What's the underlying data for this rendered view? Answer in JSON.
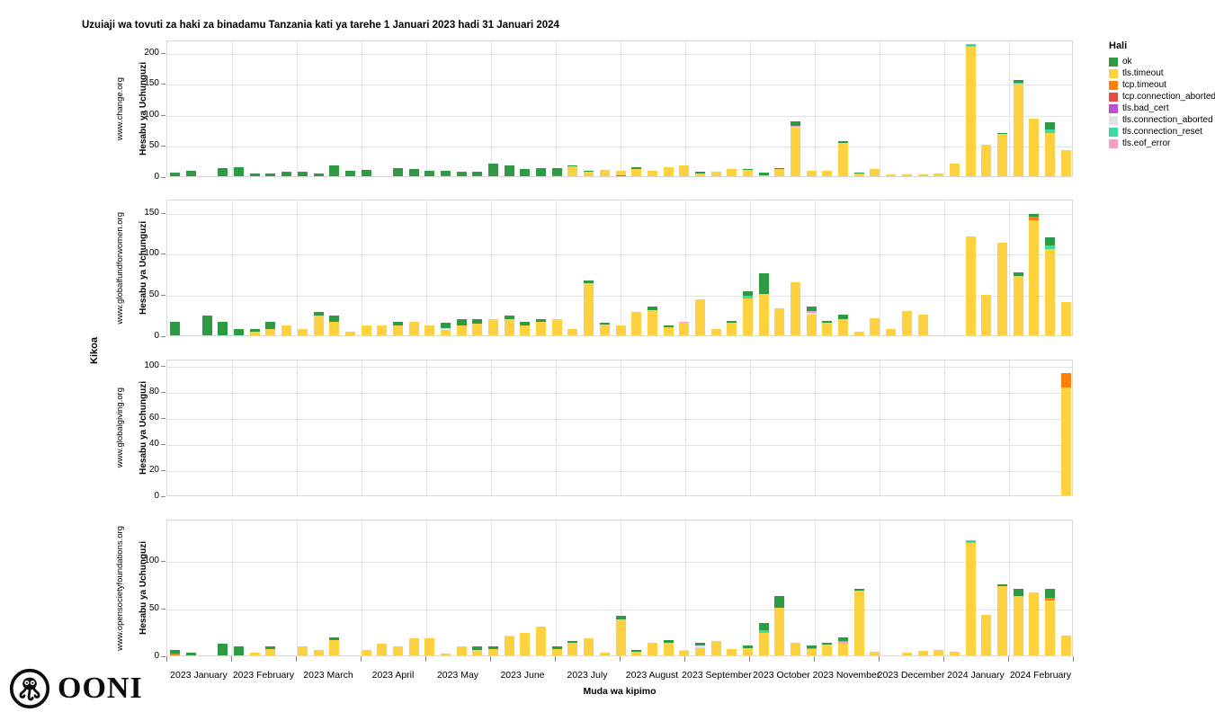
{
  "title": "Uzuiaji wa tovuti za haki za binadamu Tanzania kati ya tarehe 1 Januari 2023 hadi 31 Januari 2024",
  "logo_text": "OONI",
  "axes": {
    "x_title": "Muda wa kipimo",
    "y_title": "Hesabu ya Uchunguzi",
    "row_title": "Kikoa",
    "months": [
      "2023 January",
      "2023 February",
      "2023 March",
      "2023 April",
      "2023 May",
      "2023 June",
      "2023 July",
      "2023 August",
      "2023 September",
      "2023 October",
      "2023 November",
      "2023 December",
      "2024 January",
      "2024 February"
    ]
  },
  "legend": {
    "title": "Hali",
    "items": [
      {
        "label": "ok",
        "color": "#2e9b44"
      },
      {
        "label": "tls.timeout",
        "color": "#fdd13f"
      },
      {
        "label": "tcp.timeout",
        "color": "#fd800d"
      },
      {
        "label": "tcp.connection_aborted",
        "color": "#e84a4a"
      },
      {
        "label": "tls.bad_cert",
        "color": "#bb4fcc"
      },
      {
        "label": "tls.connection_aborted",
        "color": "#e2e2e6"
      },
      {
        "label": "tls.connection_reset",
        "color": "#3fd9a4"
      },
      {
        "label": "tls.eof_error",
        "color": "#f9a0c2"
      }
    ]
  },
  "chart_data": {
    "type": "bar",
    "stacked": true,
    "facet": "one row per domain, weekly stacked counts of measurement outcomes",
    "x_unit": "week",
    "weeks_total": 57,
    "x_range": [
      "2023 January",
      "2024 February"
    ],
    "statuses": [
      "ok",
      "tls.timeout",
      "tcp.timeout",
      "tcp.connection_aborted",
      "tls.bad_cert",
      "tls.connection_aborted",
      "tls.connection_reset",
      "tls.eof_error"
    ],
    "stack_order_bottom_to_top": [
      "tls.bad_cert",
      "tls.timeout",
      "tls.connection_aborted",
      "tls.eof_error",
      "tls.connection_reset",
      "tcp.connection_aborted",
      "tcp.timeout",
      "ok"
    ],
    "colors": {
      "ok": "#2e9b44",
      "tls.timeout": "#fdd13f",
      "tcp.timeout": "#fd800d",
      "tcp.connection_aborted": "#e84a4a",
      "tls.bad_cert": "#bb4fcc",
      "tls.connection_aborted": "#e2e2e6",
      "tls.connection_reset": "#3fd9a4",
      "tls.eof_error": "#f9a0c2"
    },
    "grid": true,
    "legend_position": "top-right",
    "panels": [
      {
        "domain": "www.change.org",
        "ylabel": "Hesabu ya Uchunguzi",
        "yticks": [
          0,
          50,
          100,
          150,
          200
        ],
        "ymax_render": 220,
        "bars": [
          {
            "ok": 6
          },
          {
            "ok": 8
          },
          {},
          {
            "ok": 13
          },
          {
            "ok": 15
          },
          {
            "ok": 4
          },
          {
            "ok": 5
          },
          {
            "ok": 7
          },
          {
            "ok": 7
          },
          {
            "ok": 4
          },
          {
            "ok": 17
          },
          {
            "ok": 8
          },
          {
            "ok": 10
          },
          {},
          {
            "ok": 13
          },
          {
            "ok": 12
          },
          {
            "ok": 9
          },
          {
            "tls.bad_cert": 2,
            "ok": 6
          },
          {
            "ok": 7
          },
          {
            "tls.bad_cert": 2,
            "ok": 5
          },
          {
            "ok": 20
          },
          {
            "ok": 17
          },
          {
            "ok": 12
          },
          {
            "ok": 13
          },
          {
            "tls.bad_cert": 2,
            "ok": 11
          },
          {
            "tls.timeout": 16,
            "ok": 2
          },
          {
            "tls.timeout": 7,
            "ok": 1
          },
          {
            "tls.timeout": 10
          },
          {
            "tls.bad_cert": 1,
            "tls.timeout": 7
          },
          {
            "tls.timeout": 12,
            "ok": 2
          },
          {
            "tls.timeout": 8
          },
          {
            "tls.timeout": 14
          },
          {
            "tls.timeout": 17
          },
          {
            "tls.timeout": 5,
            "ok": 2
          },
          {
            "tls.timeout": 7
          },
          {
            "tls.timeout": 12
          },
          {
            "tls.timeout": 10,
            "ok": 1
          },
          {
            "tls.timeout": 1,
            "ok": 5
          },
          {
            "tls.timeout": 11,
            "ok": 2
          },
          {
            "tls.timeout": 79,
            "tls.connection_aborted": 1,
            "tls.eof_error": 1,
            "ok": 8
          },
          {
            "tls.timeout": 8
          },
          {
            "tls.timeout": 9
          },
          {
            "tls.timeout": 53,
            "ok": 4
          },
          {
            "tls.timeout": 4,
            "ok": 1
          },
          {
            "tls.timeout": 12
          },
          {
            "tls.timeout": 3
          },
          {
            "tls.timeout": 3
          },
          {
            "tls.timeout": 3
          },
          {
            "tls.timeout": 5
          },
          {
            "tls.timeout": 21
          },
          {
            "tls.timeout": 208,
            "tls.connection_reset": 5
          },
          {
            "tls.timeout": 50
          },
          {
            "tls.timeout": 68,
            "ok": 2
          },
          {
            "tls.timeout": 150,
            "tls.connection_reset": 1,
            "ok": 4
          },
          {
            "tls.timeout": 93
          },
          {
            "tls.timeout": 70,
            "tls.connection_reset": 5,
            "ok": 12
          },
          {
            "tls.timeout": 42
          }
        ]
      },
      {
        "domain": "www.globalfundforwomen.org",
        "ylabel": "Hesabu ya Uchunguzi",
        "yticks": [
          0,
          50,
          100,
          150
        ],
        "ymax_render": 166,
        "bars": [
          {
            "ok": 16
          },
          {},
          {
            "ok": 24
          },
          {
            "ok": 16
          },
          {
            "ok": 8
          },
          {
            "tls.timeout": 4,
            "ok": 4
          },
          {
            "tls.timeout": 8,
            "ok": 8
          },
          {
            "tls.timeout": 12
          },
          {
            "tls.timeout": 8
          },
          {
            "tls.timeout": 24,
            "ok": 4
          },
          {
            "tls.timeout": 16,
            "ok": 8
          },
          {
            "tls.timeout": 4
          },
          {
            "tls.timeout": 12
          },
          {
            "tls.timeout": 12
          },
          {
            "tls.timeout": 12,
            "ok": 4
          },
          {
            "tls.timeout": 16
          },
          {
            "tls.timeout": 12
          },
          {
            "tls.timeout": 7,
            "tls.connection_aborted": 2,
            "ok": 6
          },
          {
            "tls.timeout": 12,
            "ok": 8
          },
          {
            "tls.timeout": 14,
            "ok": 6
          },
          {
            "tls.timeout": 20
          },
          {
            "tls.timeout": 20,
            "ok": 4
          },
          {
            "tls.timeout": 12,
            "ok": 4
          },
          {
            "tls.timeout": 16,
            "ok": 4
          },
          {
            "tls.timeout": 20
          },
          {
            "tls.timeout": 8
          },
          {
            "tls.timeout": 63,
            "ok": 4
          },
          {
            "tls.timeout": 13,
            "ok": 2
          },
          {
            "tls.timeout": 12
          },
          {
            "tls.timeout": 28
          },
          {
            "tls.timeout": 31,
            "ok": 4
          },
          {
            "tls.timeout": 10,
            "ok": 2
          },
          {
            "tls.timeout": 15,
            "tls.eof_error": 1
          },
          {
            "tls.timeout": 44
          },
          {
            "tls.timeout": 8
          },
          {
            "tls.timeout": 15,
            "ok": 2
          },
          {
            "tls.timeout": 45,
            "tls.connection_reset": 3,
            "ok": 5
          },
          {
            "tls.timeout": 50,
            "ok": 25
          },
          {
            "tls.timeout": 33
          },
          {
            "tls.timeout": 64
          },
          {
            "tls.timeout": 25,
            "tls.connection_aborted": 2,
            "tls.eof_error": 2,
            "ok": 6
          },
          {
            "tls.timeout": 15,
            "ok": 2
          },
          {
            "tls.timeout": 20,
            "ok": 5
          },
          {
            "tls.timeout": 4
          },
          {
            "tls.timeout": 21
          },
          {
            "tls.timeout": 8
          },
          {
            "tls.timeout": 29
          },
          {
            "tls.timeout": 25
          },
          {},
          {},
          {
            "tls.timeout": 120
          },
          {
            "tls.timeout": 49
          },
          {
            "tls.timeout": 112
          },
          {
            "tls.timeout": 72,
            "ok": 5
          },
          {
            "tls.timeout": 140,
            "tcp.timeout": 4,
            "ok": 4
          },
          {
            "tls.timeout": 105,
            "tls.connection_reset": 4,
            "ok": 10
          },
          {
            "tls.timeout": 40
          }
        ]
      },
      {
        "domain": "www.globalgiving.org",
        "ylabel": "Hesabu ya Uchunguzi",
        "yticks": [
          0,
          20,
          40,
          60,
          80,
          100
        ],
        "ymax_render": 105,
        "bars": [
          {},
          {},
          {},
          {},
          {},
          {},
          {},
          {},
          {},
          {},
          {},
          {},
          {},
          {},
          {},
          {},
          {},
          {},
          {},
          {},
          {},
          {},
          {},
          {},
          {},
          {},
          {},
          {},
          {},
          {},
          {},
          {},
          {},
          {},
          {},
          {},
          {},
          {},
          {},
          {},
          {},
          {},
          {},
          {},
          {},
          {},
          {},
          {},
          {},
          {},
          {},
          {},
          {},
          {},
          {},
          {},
          {
            "tls.timeout": 83,
            "tcp.timeout": 11
          }
        ]
      },
      {
        "domain": "www.opensocietyfoundations.org",
        "ylabel": "Hesabu ya Uchunguzi",
        "yticks": [
          0,
          50,
          100
        ],
        "ymax_render": 143,
        "bars": [
          {
            "tcp.timeout": 2,
            "ok": 4
          },
          {
            "ok": 3
          },
          {},
          {
            "ok": 12
          },
          {
            "ok": 9
          },
          {
            "tls.timeout": 3
          },
          {
            "tls.timeout": 7,
            "ok": 2
          },
          {},
          {
            "tls.timeout": 9
          },
          {
            "tls.timeout": 6
          },
          {
            "tls.timeout": 16,
            "ok": 3
          },
          {},
          {
            "tls.timeout": 6
          },
          {
            "tls.timeout": 12
          },
          {
            "tls.timeout": 9
          },
          {
            "tls.timeout": 18
          },
          {
            "tls.timeout": 18
          },
          {
            "tls.timeout": 2
          },
          {
            "tls.timeout": 9
          },
          {
            "tls.timeout": 6,
            "ok": 3
          },
          {
            "tls.timeout": 7,
            "ok": 2
          },
          {
            "tls.timeout": 20,
            "tls.connection_aborted": 1
          },
          {
            "tls.timeout": 24
          },
          {
            "tls.timeout": 30
          },
          {
            "tls.timeout": 7,
            "ok": 2
          },
          {
            "tls.timeout": 13,
            "ok": 2
          },
          {
            "tls.timeout": 18
          },
          {
            "tls.timeout": 3
          },
          {
            "tls.timeout": 38,
            "ok": 3
          },
          {
            "tls.timeout": 4,
            "ok": 2
          },
          {
            "tls.timeout": 13
          },
          {
            "tls.timeout": 13,
            "ok": 3
          },
          {
            "tls.timeout": 5,
            "tls.connection_aborted": 1
          },
          {
            "tls.timeout": 8,
            "tls.connection_aborted": 2,
            "ok": 3
          },
          {
            "tls.timeout": 15
          },
          {
            "tls.timeout": 7
          },
          {
            "tls.timeout": 8,
            "ok": 2
          },
          {
            "tls.timeout": 24,
            "tls.connection_reset": 2,
            "ok": 8
          },
          {
            "tls.timeout": 50,
            "ok": 12
          },
          {
            "tls.timeout": 13
          },
          {
            "tls.timeout": 7,
            "tls.connection_reset": 1,
            "ok": 2
          },
          {
            "tls.timeout": 11,
            "ok": 2
          },
          {
            "tls.timeout": 12,
            "tls.eof_error": 2,
            "tls.connection_reset": 1,
            "ok": 4
          },
          {
            "tls.timeout": 68,
            "ok": 2
          },
          {
            "tls.timeout": 4
          },
          {},
          {
            "tls.timeout": 3
          },
          {
            "tls.timeout": 5
          },
          {
            "tls.timeout": 6
          },
          {
            "tls.timeout": 4
          },
          {
            "tls.timeout": 118,
            "tls.connection_reset": 2
          },
          {
            "tls.timeout": 42
          },
          {
            "tls.timeout": 72,
            "ok": 2
          },
          {
            "tls.timeout": 62,
            "ok": 8
          },
          {
            "tls.timeout": 66
          },
          {
            "tls.timeout": 57,
            "tcp.timeout": 3,
            "ok": 10
          },
          {
            "tls.timeout": 21
          }
        ]
      }
    ]
  }
}
